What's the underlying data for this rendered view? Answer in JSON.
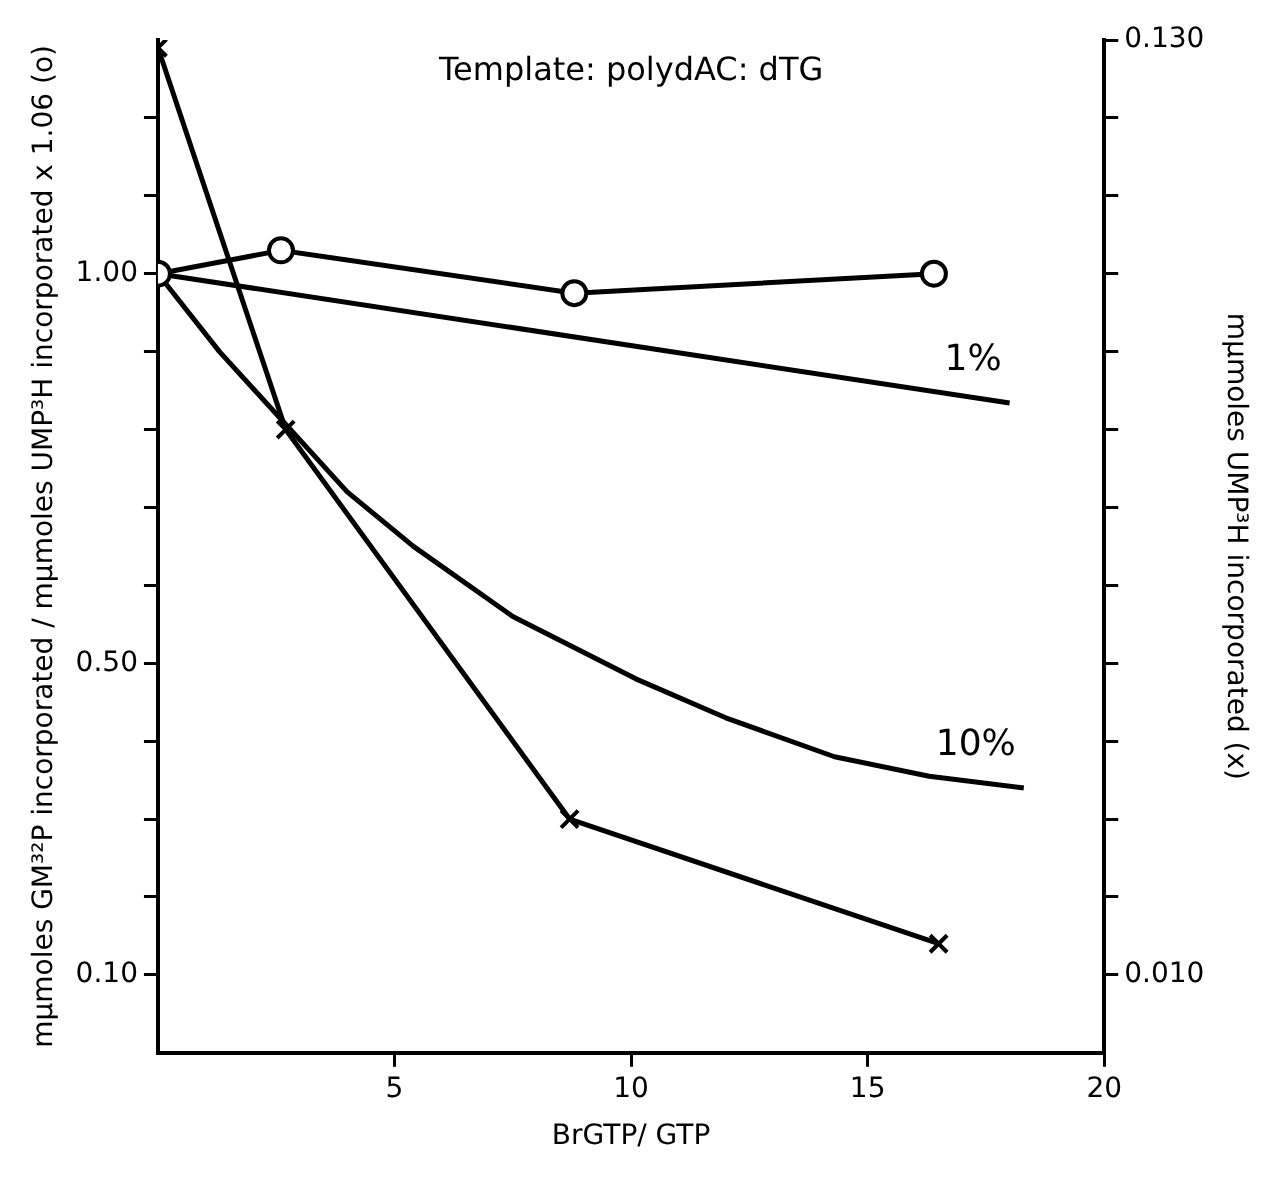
{
  "chart_data": {
    "type": "line",
    "annotations": [
      "Template: polydAC: dTG"
    ],
    "xlabel": "BrGTP/ GTP",
    "ylabel": "mμmoles GM³²P incorporated / mμmoles UMP³H incorporated x 1.06 (o)",
    "y2label": "mμmoles UMP³H incorporated (x)",
    "xlim": [
      0,
      20
    ],
    "xticks": [
      5,
      10,
      15,
      20
    ],
    "ylim": [
      0,
      1.3
    ],
    "yticks": [
      {
        "value": 0.1,
        "label": "0.10"
      },
      {
        "value": 0.2,
        "label": null
      },
      {
        "value": 0.3,
        "label": null
      },
      {
        "value": 0.4,
        "label": null
      },
      {
        "value": 0.5,
        "label": "0.50"
      },
      {
        "value": 0.6,
        "label": null
      },
      {
        "value": 0.7,
        "label": null
      },
      {
        "value": 0.8,
        "label": null
      },
      {
        "value": 0.9,
        "label": null
      },
      {
        "value": 1.0,
        "label": "1.00"
      },
      {
        "value": 1.1,
        "label": null
      },
      {
        "value": 1.2,
        "label": null
      }
    ],
    "y2lim": [
      0,
      0.13
    ],
    "y2ticks": [
      {
        "value": 0.01,
        "label": "0.010"
      },
      {
        "value": 0.02,
        "label": null
      },
      {
        "value": 0.03,
        "label": null
      },
      {
        "value": 0.04,
        "label": null
      },
      {
        "value": 0.05,
        "label": null
      },
      {
        "value": 0.06,
        "label": null
      },
      {
        "value": 0.07,
        "label": null
      },
      {
        "value": 0.08,
        "label": null
      },
      {
        "value": 0.09,
        "label": null
      },
      {
        "value": 0.1,
        "label": null
      },
      {
        "value": 0.11,
        "label": null
      },
      {
        "value": 0.12,
        "label": null
      },
      {
        "value": 0.13,
        "label": "0.130"
      }
    ],
    "grid": false,
    "legend": false,
    "line_style": "solid",
    "series": [
      {
        "color": "#000000",
        "marker": "circle",
        "x": [
          0,
          2.6,
          8.8,
          16.4
        ],
        "values": [
          1.0,
          1.03,
          0.975,
          1.0
        ]
      },
      {
        "color": "#000000",
        "marker": "cross",
        "axis": "y2",
        "x": [
          0,
          2.7,
          8.7,
          16.5
        ],
        "values": [
          0.129,
          0.08,
          0.03,
          0.014
        ]
      },
      {
        "name": "1%",
        "color": "#000000",
        "marker": "none",
        "x": [
          0,
          18
        ],
        "values": [
          1.0,
          0.834
        ]
      },
      {
        "name": "10%",
        "color": "#000000",
        "marker": "none",
        "x": [
          0,
          1.3,
          4,
          5.4,
          7.5,
          10.1,
          12,
          14.3,
          16.3,
          18.3
        ],
        "values": [
          1.0,
          0.9,
          0.72,
          0.65,
          0.56,
          0.48,
          0.43,
          0.38,
          0.355,
          0.34
        ]
      }
    ]
  }
}
